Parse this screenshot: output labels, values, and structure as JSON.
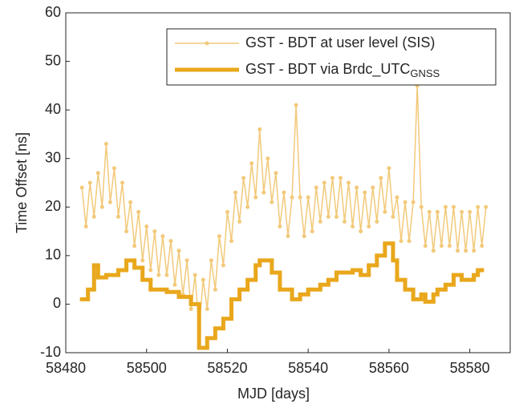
{
  "chart_data": {
    "type": "line",
    "x_label": "MJD [days]",
    "y_label": "Time Offset [ns]",
    "xlim": [
      58480,
      58590
    ],
    "ylim": [
      -10,
      60
    ],
    "xticks": [
      58480,
      58500,
      58520,
      58540,
      58560,
      58580
    ],
    "yticks": [
      -10,
      0,
      10,
      20,
      30,
      40,
      50,
      60
    ],
    "grid": false,
    "legend": "upper right",
    "series": [
      {
        "name": "GST - BDT at user level (SIS)",
        "color": "#f2c97a",
        "marker": true,
        "x": [
          58484,
          58485,
          58486,
          58487,
          58488,
          58489,
          58490,
          58491,
          58492,
          58493,
          58494,
          58495,
          58496,
          58497,
          58498,
          58499,
          58500,
          58501,
          58502,
          58503,
          58504,
          58505,
          58506,
          58507,
          58508,
          58509,
          58510,
          58511,
          58512,
          58513,
          58514,
          58515,
          58516,
          58517,
          58518,
          58519,
          58520,
          58521,
          58522,
          58523,
          58524,
          58525,
          58526,
          58527,
          58528,
          58529,
          58530,
          58531,
          58532,
          58533,
          58534,
          58535,
          58536,
          58537,
          58538,
          58539,
          58540,
          58541,
          58542,
          58543,
          58544,
          58545,
          58546,
          58547,
          58548,
          58549,
          58550,
          58551,
          58552,
          58553,
          58554,
          58555,
          58556,
          58557,
          58558,
          58559,
          58560,
          58561,
          58562,
          58563,
          58564,
          58565,
          58566,
          58567,
          58568,
          58569,
          58570,
          58571,
          58572,
          58573,
          58574,
          58575,
          58576,
          58577,
          58578,
          58579,
          58580,
          58581,
          58582,
          58583,
          58584
        ],
        "values": [
          24,
          16,
          25,
          18,
          27,
          20,
          33,
          21,
          28,
          18,
          25,
          15,
          21,
          12,
          19,
          9,
          16,
          7,
          15,
          6,
          14,
          6,
          13,
          4,
          11,
          2,
          9,
          -1,
          6,
          -5,
          5,
          -1,
          9,
          3,
          14,
          8,
          19,
          13,
          23,
          17,
          26,
          20,
          29,
          22,
          36,
          23,
          30,
          21,
          27,
          16,
          23,
          14,
          22,
          41,
          22,
          14,
          22,
          15,
          24,
          17,
          25,
          18,
          26,
          18,
          26,
          17,
          25,
          16,
          24,
          15,
          23,
          16,
          24,
          17,
          26,
          19,
          28,
          18,
          22,
          13,
          21,
          13,
          21,
          45,
          20,
          12,
          19,
          11,
          19,
          12,
          20,
          12,
          20,
          11,
          19,
          11,
          19,
          11,
          20,
          12,
          20
        ]
      },
      {
        "name": "GST - BDT via Brdc_UTC",
        "name_sub": "GNSS",
        "color": "#e9a71c",
        "step": true,
        "x": [
          58484,
          58485.5,
          58487,
          58488,
          58490,
          58493,
          58495,
          58497,
          58499,
          58501,
          58505,
          58508,
          58511,
          58513,
          58515,
          58517,
          58519,
          58521,
          58523,
          58525,
          58527,
          58528,
          58531,
          58533,
          58536,
          58538,
          58540,
          58543,
          58545,
          58547,
          58551,
          58553,
          58555,
          58557,
          58559,
          58561,
          58562,
          58564,
          58566,
          58568,
          58569,
          58571,
          58572,
          58574,
          58576,
          58578,
          58581,
          58582,
          58583
        ],
        "values": [
          1,
          3,
          8,
          5.5,
          6,
          7,
          9,
          7.5,
          5,
          3,
          2.5,
          1.5,
          0,
          -9,
          -7,
          -5,
          -3,
          1,
          3,
          5,
          8,
          9,
          6.5,
          3,
          1,
          2,
          3,
          4,
          5,
          6.5,
          7,
          6,
          8,
          10,
          12.5,
          9,
          5,
          3,
          1,
          2,
          0.5,
          2,
          3,
          4,
          6,
          5,
          6,
          7,
          7
        ]
      }
    ]
  }
}
